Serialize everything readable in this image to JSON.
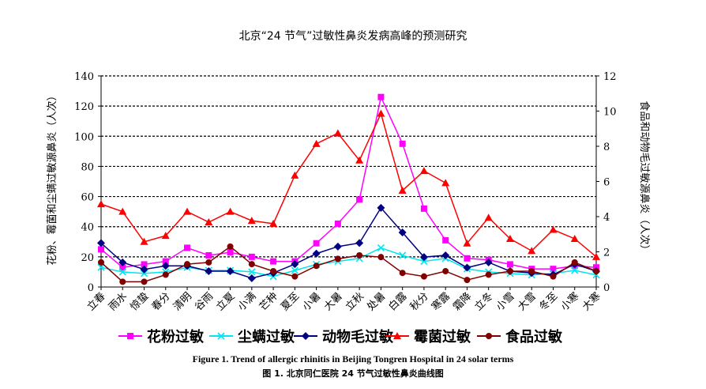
{
  "chart_data": {
    "type": "line",
    "title": "北京“24 节气”过敏性鼻炎发病高峰的预测研究",
    "ylabel_left": "花粉、霉菌和尘螨过敏源鼻炎（人次）",
    "ylabel_right": "食品和动物毛过敏源鼻炎（人次）",
    "ylim_left": [
      0,
      140
    ],
    "ylim_right": [
      0,
      12
    ],
    "yticks_left": [
      "0",
      "20",
      "40",
      "60",
      "80",
      "100",
      "120",
      "140"
    ],
    "yticks_right": [
      "0",
      "2",
      "4",
      "6",
      "8",
      "10",
      "12"
    ],
    "grid": true,
    "legend_position": "bottom",
    "categories": [
      "立春",
      "雨水",
      "惊蛰",
      "春分",
      "清明",
      "谷雨",
      "立夏",
      "小满",
      "芒种",
      "夏至",
      "小暑",
      "大暑",
      "立秋",
      "处暑",
      "白露",
      "秋分",
      "寒露",
      "霜降",
      "立冬",
      "小雪",
      "大雪",
      "冬至",
      "小寒",
      "大寒"
    ],
    "series": [
      {
        "name": "花粉过敏",
        "axis": "left",
        "color": "#ff00ff",
        "marker": "square",
        "values": [
          25,
          13,
          15,
          17,
          26,
          21,
          23,
          20,
          17,
          17,
          29,
          42,
          58,
          126,
          95,
          52,
          31,
          19,
          18,
          15,
          12,
          12,
          14,
          13
        ]
      },
      {
        "name": "尘螨过敏",
        "axis": "left",
        "color": "#00e5ee",
        "marker": "x",
        "values": [
          13,
          10,
          9,
          10,
          13,
          11,
          11,
          10,
          7,
          11,
          15,
          17,
          19,
          26,
          21,
          17,
          19,
          12,
          10,
          9,
          8,
          9,
          11,
          8
        ]
      },
      {
        "name": "动物毛过敏",
        "axis": "right",
        "color": "#000080",
        "marker": "diamond",
        "values": [
          2.5,
          1.4,
          1.0,
          1.2,
          1.2,
          0.9,
          0.9,
          0.5,
          0.8,
          1.3,
          1.9,
          2.3,
          2.5,
          4.5,
          3.1,
          1.7,
          1.8,
          1.1,
          1.4,
          0.9,
          0.8,
          0.7,
          1.3,
          0.9
        ]
      },
      {
        "name": "霉菌过敏",
        "axis": "left",
        "color": "#ff0000",
        "marker": "triangle",
        "values": [
          55,
          50,
          30,
          34,
          50,
          43,
          50,
          44,
          42,
          74,
          95,
          102,
          84,
          115,
          64,
          77,
          69,
          29,
          46,
          32,
          24,
          38,
          32,
          20
        ]
      },
      {
        "name": "食品过敏",
        "axis": "right",
        "color": "#800000",
        "marker": "circle",
        "values": [
          1.4,
          0.3,
          0.3,
          0.7,
          1.3,
          1.4,
          2.3,
          1.3,
          0.9,
          0.6,
          1.2,
          1.6,
          1.8,
          1.7,
          0.8,
          0.6,
          0.9,
          0.4,
          0.7,
          0.9,
          0.9,
          0.6,
          1.4,
          0.9
        ]
      }
    ]
  },
  "captions": {
    "english": "Figure 1. Trend of allergic rhinitis in Beijing Tongren Hospital in 24 solar terms",
    "chinese": "图 1.  北京同仁医院 24 节气过敏性鼻炎曲线图"
  }
}
